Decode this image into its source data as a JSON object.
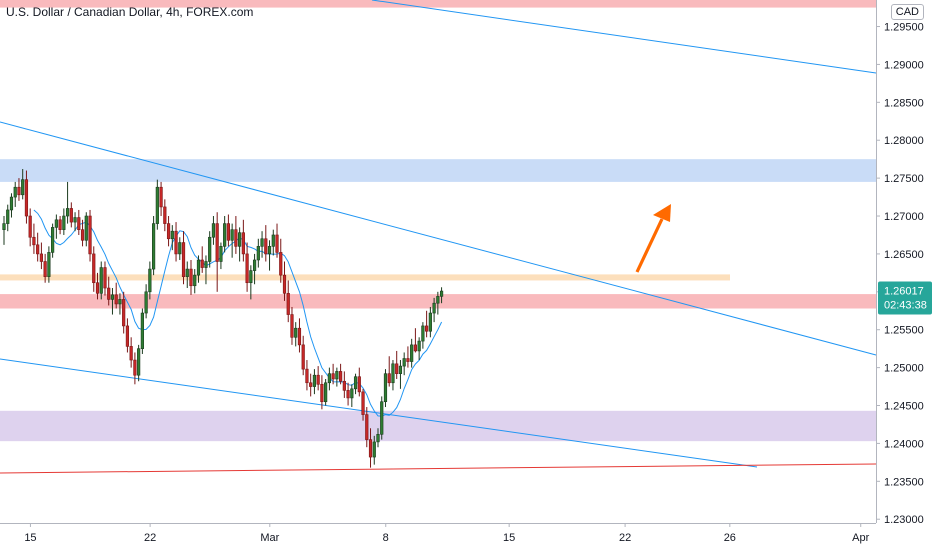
{
  "header": {
    "title": "U.S. Dollar / Canadian Dollar, 4h, FOREX.com",
    "currency": "CAD"
  },
  "price_badge": {
    "price": "1.26017",
    "countdown": "02:43:38"
  },
  "colors": {
    "bull": "#26a69a",
    "bear": "#ef5350",
    "candle_up": "#1b3a1e",
    "candle_down": "#7a1616",
    "trendline": "#2196f3",
    "support_line": "#e53935",
    "zone_blue": "#bbd3f5",
    "zone_red": "#f7a9ad",
    "zone_orange": "#fbd9b0",
    "zone_purple": "#d6c7ea",
    "arrow": "#ff6a00",
    "badge": "#26a69a"
  },
  "chart_data": {
    "type": "candlestick",
    "title": "U.S. Dollar / Canadian Dollar, 4h, FOREX.com",
    "ylabel": "CAD",
    "ylim": [
      1.2295,
      1.2985
    ],
    "y_ticks": [
      "1.29500",
      "1.29000",
      "1.28500",
      "1.28000",
      "1.27500",
      "1.27000",
      "1.26500",
      "1.26000",
      "1.25500",
      "1.25000",
      "1.24500",
      "1.24000",
      "1.23500",
      "1.23000"
    ],
    "y_tick_values": [
      1.295,
      1.29,
      1.285,
      1.28,
      1.275,
      1.27,
      1.265,
      1.26,
      1.255,
      1.25,
      1.245,
      1.24,
      1.235,
      1.23
    ],
    "x_ticks": [
      "15",
      "22",
      "Mar",
      "8",
      "15",
      "22",
      "26",
      "Apr"
    ],
    "x_tick_index": [
      6,
      38,
      70,
      101,
      134,
      165,
      193,
      228
    ],
    "grid": false,
    "zones": [
      {
        "name": "blue",
        "low": 1.2745,
        "high": 1.2775
      },
      {
        "name": "red-top",
        "low": 1.2975,
        "high": 1.2985
      },
      {
        "name": "orange",
        "low": 1.2615,
        "high": 1.2623
      },
      {
        "name": "red",
        "low": 1.2578,
        "high": 1.2597
      },
      {
        "name": "purple",
        "low": 1.2403,
        "high": 1.2443
      }
    ],
    "current_price": 1.26017,
    "candles": [
      [
        1.2682,
        1.27,
        1.2662,
        1.269
      ],
      [
        1.269,
        1.2715,
        1.268,
        1.2708
      ],
      [
        1.2708,
        1.273,
        1.2698,
        1.2725
      ],
      [
        1.2725,
        1.2745,
        1.2712,
        1.2738
      ],
      [
        1.2738,
        1.275,
        1.272,
        1.2728
      ],
      [
        1.2728,
        1.2762,
        1.2722,
        1.2748
      ],
      [
        1.2748,
        1.276,
        1.269,
        1.27
      ],
      [
        1.27,
        1.271,
        1.266,
        1.2672
      ],
      [
        1.2672,
        1.269,
        1.265,
        1.2662
      ],
      [
        1.2662,
        1.2678,
        1.264,
        1.265
      ],
      [
        1.265,
        1.2665,
        1.263,
        1.264
      ],
      [
        1.264,
        1.265,
        1.2612,
        1.262
      ],
      [
        1.262,
        1.266,
        1.2612,
        1.2652
      ],
      [
        1.2652,
        1.269,
        1.2645,
        1.2685
      ],
      [
        1.2685,
        1.2702,
        1.267,
        1.2695
      ],
      [
        1.2695,
        1.27,
        1.2676,
        1.2682
      ],
      [
        1.2682,
        1.271,
        1.2675,
        1.27
      ],
      [
        1.27,
        1.2745,
        1.269,
        1.271
      ],
      [
        1.271,
        1.2718,
        1.2685,
        1.2692
      ],
      [
        1.2692,
        1.2705,
        1.268,
        1.2698
      ],
      [
        1.2698,
        1.2708,
        1.2675,
        1.2682
      ],
      [
        1.2682,
        1.2695,
        1.266,
        1.2668
      ],
      [
        1.2668,
        1.2705,
        1.266,
        1.27
      ],
      [
        1.27,
        1.2708,
        1.264,
        1.265
      ],
      [
        1.265,
        1.266,
        1.26,
        1.2612
      ],
      [
        1.2612,
        1.2625,
        1.259,
        1.2598
      ],
      [
        1.2598,
        1.264,
        1.259,
        1.2632
      ],
      [
        1.2632,
        1.264,
        1.2595,
        1.2605
      ],
      [
        1.2605,
        1.262,
        1.2582,
        1.259
      ],
      [
        1.259,
        1.2605,
        1.257,
        1.2596
      ],
      [
        1.2596,
        1.2612,
        1.2578,
        1.2584
      ],
      [
        1.2584,
        1.2598,
        1.257,
        1.259
      ],
      [
        1.259,
        1.26,
        1.2545,
        1.2555
      ],
      [
        1.2555,
        1.2565,
        1.252,
        1.2528
      ],
      [
        1.2528,
        1.254,
        1.25,
        1.251
      ],
      [
        1.251,
        1.252,
        1.2478,
        1.249
      ],
      [
        1.249,
        1.253,
        1.2482,
        1.2525
      ],
      [
        1.2525,
        1.2578,
        1.2518,
        1.2572
      ],
      [
        1.2572,
        1.261,
        1.2565,
        1.26
      ],
      [
        1.26,
        1.264,
        1.259,
        1.263
      ],
      [
        1.263,
        1.27,
        1.2622,
        1.269
      ],
      [
        1.269,
        1.2748,
        1.2682,
        1.2738
      ],
      [
        1.2738,
        1.2745,
        1.27,
        1.2712
      ],
      [
        1.2712,
        1.2722,
        1.268,
        1.269
      ],
      [
        1.269,
        1.27,
        1.266,
        1.267
      ],
      [
        1.267,
        1.2688,
        1.2655,
        1.268
      ],
      [
        1.268,
        1.2692,
        1.264,
        1.265
      ],
      [
        1.265,
        1.2672,
        1.2642,
        1.2665
      ],
      [
        1.2665,
        1.268,
        1.261,
        1.262
      ],
      [
        1.262,
        1.264,
        1.2605,
        1.263
      ],
      [
        1.263,
        1.2642,
        1.2596,
        1.2608
      ],
      [
        1.2608,
        1.263,
        1.2598,
        1.2622
      ],
      [
        1.2622,
        1.2648,
        1.2612,
        1.2642
      ],
      [
        1.2642,
        1.266,
        1.2625,
        1.2632
      ],
      [
        1.2632,
        1.2648,
        1.261,
        1.264
      ],
      [
        1.264,
        1.268,
        1.2632,
        1.2672
      ],
      [
        1.2672,
        1.27,
        1.2662,
        1.269
      ],
      [
        1.269,
        1.2705,
        1.26,
        1.264
      ],
      [
        1.264,
        1.2665,
        1.263,
        1.266
      ],
      [
        1.266,
        1.27,
        1.2652,
        1.269
      ],
      [
        1.269,
        1.2702,
        1.266,
        1.2668
      ],
      [
        1.2668,
        1.269,
        1.2645,
        1.2682
      ],
      [
        1.2682,
        1.27,
        1.265,
        1.266
      ],
      [
        1.266,
        1.2685,
        1.264,
        1.2678
      ],
      [
        1.2678,
        1.2695,
        1.264,
        1.265
      ],
      [
        1.265,
        1.2665,
        1.26,
        1.2612
      ],
      [
        1.2612,
        1.2635,
        1.259,
        1.2628
      ],
      [
        1.2628,
        1.265,
        1.261,
        1.2642
      ],
      [
        1.2642,
        1.267,
        1.2632,
        1.266
      ],
      [
        1.266,
        1.268,
        1.2645,
        1.267
      ],
      [
        1.267,
        1.2688,
        1.264,
        1.265
      ],
      [
        1.265,
        1.2668,
        1.2628,
        1.266
      ],
      [
        1.266,
        1.2682,
        1.2648,
        1.2675
      ],
      [
        1.2675,
        1.269,
        1.2645,
        1.2652
      ],
      [
        1.2652,
        1.267,
        1.2612,
        1.2622
      ],
      [
        1.2622,
        1.264,
        1.2588,
        1.2598
      ],
      [
        1.2598,
        1.2615,
        1.256,
        1.257
      ],
      [
        1.257,
        1.258,
        1.253,
        1.254
      ],
      [
        1.254,
        1.256,
        1.2528,
        1.2552
      ],
      [
        1.2552,
        1.2565,
        1.252,
        1.253
      ],
      [
        1.253,
        1.2542,
        1.249,
        1.2498
      ],
      [
        1.2498,
        1.251,
        1.247,
        1.248
      ],
      [
        1.248,
        1.2492,
        1.2462,
        1.2475
      ],
      [
        1.2475,
        1.2498,
        1.2465,
        1.249
      ],
      [
        1.249,
        1.2502,
        1.247,
        1.2478
      ],
      [
        1.2478,
        1.249,
        1.2445,
        1.2455
      ],
      [
        1.2455,
        1.2485,
        1.245,
        1.248
      ],
      [
        1.248,
        1.25,
        1.247,
        1.2492
      ],
      [
        1.2492,
        1.2505,
        1.2478,
        1.2485
      ],
      [
        1.2485,
        1.25,
        1.2475,
        1.2495
      ],
      [
        1.2495,
        1.2505,
        1.2478,
        1.2482
      ],
      [
        1.2482,
        1.2495,
        1.246,
        1.247
      ],
      [
        1.247,
        1.248,
        1.245,
        1.246
      ],
      [
        1.246,
        1.2478,
        1.2448,
        1.2472
      ],
      [
        1.2472,
        1.2492,
        1.2465,
        1.2488
      ],
      [
        1.2488,
        1.25,
        1.2462,
        1.2468
      ],
      [
        1.2468,
        1.2472,
        1.243,
        1.2438
      ],
      [
        1.2438,
        1.2448,
        1.2395,
        1.2405
      ],
      [
        1.2405,
        1.242,
        1.2368,
        1.2382
      ],
      [
        1.2382,
        1.241,
        1.2372,
        1.2402
      ],
      [
        1.2402,
        1.242,
        1.2395,
        1.2412
      ],
      [
        1.2412,
        1.2462,
        1.2405,
        1.2455
      ],
      [
        1.2455,
        1.2498,
        1.2448,
        1.2492
      ],
      [
        1.2492,
        1.2515,
        1.2475,
        1.248
      ],
      [
        1.248,
        1.251,
        1.247,
        1.2505
      ],
      [
        1.2505,
        1.2522,
        1.2485,
        1.2492
      ],
      [
        1.2492,
        1.251,
        1.2472,
        1.2502
      ],
      [
        1.2502,
        1.252,
        1.249,
        1.2512
      ],
      [
        1.2512,
        1.2528,
        1.25,
        1.2508
      ],
      [
        1.2508,
        1.2538,
        1.25,
        1.253
      ],
      [
        1.253,
        1.2552,
        1.252,
        1.2522
      ],
      [
        1.2522,
        1.254,
        1.251,
        1.2535
      ],
      [
        1.2535,
        1.256,
        1.2525,
        1.2555
      ],
      [
        1.2555,
        1.2575,
        1.254,
        1.2548
      ],
      [
        1.2548,
        1.258,
        1.254,
        1.2572
      ],
      [
        1.2572,
        1.2592,
        1.256,
        1.2585
      ],
      [
        1.2585,
        1.26,
        1.257,
        1.2594
      ],
      [
        1.2594,
        1.2606,
        1.2585,
        1.2601
      ]
    ]
  }
}
